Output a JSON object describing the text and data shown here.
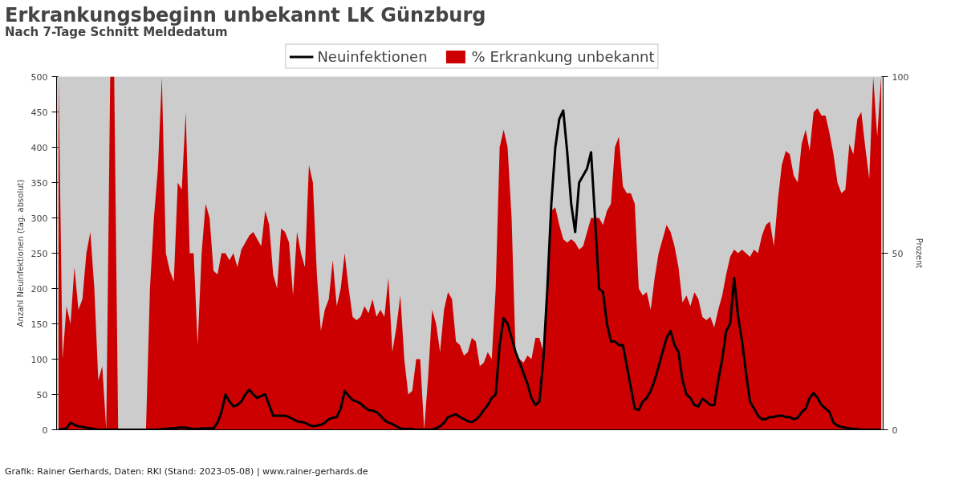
{
  "chart_data": {
    "type": "line",
    "title": "Erkrankungsbeginn unbekannt LK Günzburg",
    "subtitle": "Nach 7-Tage Schnitt Meldedatum",
    "ylabel": "Anzahl Neuinfektionen (tag. absolut)",
    "y2label": "Prozent",
    "annotations": [
      "Grafik: Rainer Gerhards, Daten: RKI (Stand: 2023-05-08) | www.rainer-gerhards.de"
    ],
    "categories": [
      null,
      null,
      null,
      null,
      null,
      null,
      null,
      null,
      null,
      null,
      null,
      null,
      null,
      null,
      null,
      null,
      null,
      null,
      null,
      null,
      null,
      null,
      null,
      null,
      null,
      null,
      null,
      null,
      null,
      null,
      null,
      null,
      null,
      null,
      null,
      null,
      null,
      null,
      null,
      null,
      null,
      null,
      null,
      null,
      null,
      null,
      null,
      null,
      null,
      null,
      null,
      null,
      null,
      null,
      null,
      null,
      null,
      null,
      null,
      null,
      null,
      null,
      null,
      null,
      null,
      null,
      null,
      null,
      null,
      null,
      null,
      null,
      null,
      null,
      null,
      null,
      null,
      null,
      null,
      null,
      null,
      null,
      null,
      null,
      null,
      null,
      null,
      null,
      null,
      null,
      null,
      null,
      null,
      null,
      null,
      null,
      null,
      null,
      null,
      null,
      null,
      null,
      null,
      null,
      null,
      null,
      null,
      null,
      null,
      null,
      null,
      null,
      null,
      null,
      null,
      null,
      null,
      null,
      null,
      null,
      null,
      null,
      null,
      null,
      null,
      null,
      null,
      null,
      null,
      null,
      null,
      null,
      null,
      null,
      null,
      null,
      null,
      null,
      null,
      null,
      null,
      null,
      null,
      null,
      null,
      null,
      null,
      null,
      null,
      null,
      null,
      null,
      null,
      null,
      null,
      null,
      null,
      null,
      null,
      null,
      null,
      null,
      null,
      null,
      null,
      null,
      null,
      null,
      null,
      null,
      null,
      null,
      null,
      null,
      null,
      null,
      null,
      null,
      null,
      null,
      null,
      null,
      null,
      null,
      null,
      null,
      null,
      null,
      null,
      null,
      null,
      null,
      null,
      null,
      null,
      null,
      null,
      null,
      null,
      null,
      null,
      null,
      null,
      null,
      null,
      null,
      null,
      null
    ],
    "series": [
      {
        "name": "% Erkrankung unbekannt",
        "type": "area",
        "axis": "y2",
        "color": "#cc0000",
        "values": [
          100,
          20,
          35,
          30,
          46,
          34,
          37,
          50,
          56,
          40,
          14,
          18,
          0,
          100,
          100,
          0,
          0,
          0,
          0,
          0,
          0,
          0,
          0,
          40,
          60,
          74,
          100,
          50,
          45,
          42,
          70,
          68,
          90,
          50,
          50,
          24,
          50,
          64,
          60,
          45,
          44,
          50,
          50,
          48,
          50,
          46,
          51,
          53,
          55,
          56,
          54,
          52,
          62,
          58,
          44,
          40,
          57,
          56,
          53,
          38,
          56,
          50,
          46,
          75,
          70,
          44,
          28,
          34,
          37,
          48,
          35,
          40,
          50,
          40,
          32,
          31,
          32,
          35,
          33,
          37,
          32,
          34,
          32,
          43,
          22,
          29,
          38,
          20,
          10,
          11,
          20,
          20,
          0,
          15,
          34,
          30,
          22,
          34,
          39,
          37,
          25,
          24,
          21,
          22,
          26,
          25,
          18,
          19,
          22,
          20,
          40,
          80,
          85,
          80,
          60,
          22,
          20,
          19,
          21,
          20,
          26,
          26,
          22,
          40,
          62,
          63,
          58,
          54,
          53,
          54,
          53,
          51,
          52,
          56,
          60,
          60,
          60,
          58,
          62,
          64,
          80,
          83,
          69,
          67,
          67,
          64,
          40,
          38,
          39,
          34,
          43,
          50,
          54,
          58,
          56,
          52,
          46,
          36,
          38,
          35,
          39,
          37,
          32,
          31,
          32,
          29,
          34,
          38,
          44,
          49,
          51,
          50,
          51,
          50,
          49,
          51,
          50,
          55,
          58,
          59,
          52,
          65,
          75,
          79,
          78,
          72,
          70,
          81,
          85,
          79,
          90,
          91,
          89,
          89,
          84,
          78,
          70,
          67,
          68,
          81,
          78,
          88,
          90,
          80,
          71,
          100,
          83,
          100
        ]
      },
      {
        "name": "Neuinfektionen",
        "color": "#000000",
        "values": [
          0,
          1,
          2,
          10,
          7,
          5,
          4,
          3,
          2,
          1,
          0,
          0,
          0,
          0,
          0,
          0,
          0,
          0,
          0,
          0,
          0,
          0,
          0,
          0,
          0,
          0,
          1,
          1,
          2,
          2,
          3,
          3,
          3,
          2,
          1,
          1,
          2,
          2,
          2,
          2,
          10,
          25,
          50,
          40,
          33,
          35,
          40,
          50,
          57,
          50,
          45,
          48,
          50,
          35,
          20,
          20,
          20,
          20,
          18,
          15,
          12,
          11,
          10,
          7,
          5,
          6,
          7,
          10,
          15,
          17,
          18,
          30,
          55,
          48,
          42,
          40,
          37,
          32,
          28,
          27,
          25,
          20,
          14,
          10,
          8,
          5,
          2,
          1,
          1,
          1,
          0,
          0,
          0,
          0,
          0,
          2,
          5,
          10,
          18,
          20,
          22,
          18,
          15,
          12,
          11,
          14,
          20,
          28,
          35,
          45,
          50,
          120,
          158,
          150,
          130,
          110,
          95,
          80,
          65,
          45,
          35,
          40,
          100,
          200,
          320,
          400,
          440,
          452,
          393,
          320,
          280,
          350,
          360,
          370,
          393,
          300,
          200,
          195,
          150,
          125,
          125,
          120,
          120,
          90,
          60,
          30,
          28,
          40,
          45,
          55,
          70,
          90,
          110,
          130,
          140,
          120,
          110,
          70,
          50,
          45,
          35,
          33,
          44,
          40,
          35,
          35,
          70,
          100,
          140,
          150,
          215,
          160,
          125,
          80,
          40,
          30,
          20,
          15,
          15,
          18,
          18,
          20,
          20,
          18,
          18,
          15,
          17,
          25,
          30,
          45,
          52,
          45,
          35,
          30,
          25,
          10,
          6,
          4,
          3,
          2,
          1,
          1,
          0,
          0,
          0,
          0,
          0,
          0
        ]
      }
    ],
    "ylim": [
      0,
      500
    ],
    "yticks": [
      0,
      50,
      100,
      150,
      200,
      250,
      300,
      350,
      400,
      450,
      500
    ],
    "y2lim": [
      0,
      100
    ],
    "y2ticks": [
      0,
      50,
      100
    ],
    "legend": "top",
    "grid": false
  }
}
